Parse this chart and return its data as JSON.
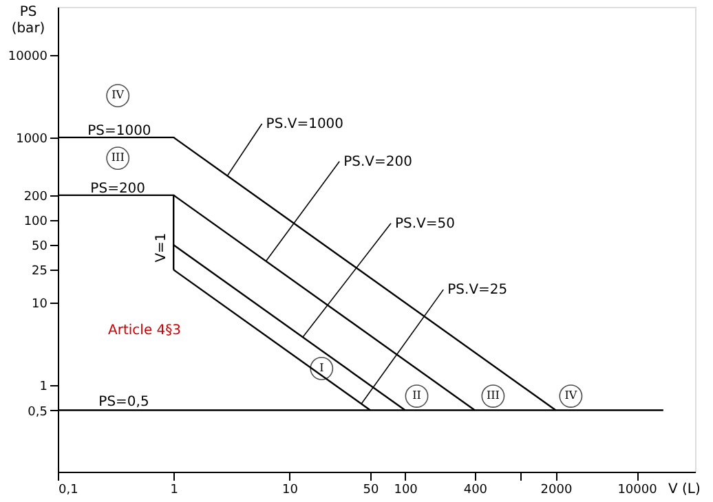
{
  "chart_data": {
    "type": "line",
    "xlabel": "V (L)",
    "ylabel": "PS (bar)",
    "log": "xy",
    "grid": false,
    "xlim": [
      0.1,
      32000
    ],
    "ylim": [
      0.09,
      38000
    ],
    "xticks": [
      {
        "value": 0.1,
        "label": "0,1"
      },
      1,
      10,
      50,
      100,
      400,
      {
        "value": 1000,
        "label": null
      },
      2000,
      10000
    ],
    "yticks": [
      {
        "value": 0.5,
        "label": "0,5"
      },
      1,
      10,
      25,
      50,
      100,
      200,
      1000,
      10000
    ],
    "series": [
      {
        "color": "#000000",
        "x": [
          0.1,
          1,
          2000
        ],
        "values": [
          1000,
          1000,
          0.5
        ]
      },
      {
        "color": "#000000",
        "x": [
          0.1,
          1,
          400
        ],
        "values": [
          200,
          200,
          0.5
        ]
      },
      {
        "color": "#000000",
        "x": [
          1,
          1
        ],
        "values": [
          200,
          25
        ]
      },
      {
        "color": "#000000",
        "x": [
          1,
          100
        ],
        "values": [
          50,
          0.5
        ]
      },
      {
        "color": "#000000",
        "x": [
          1,
          50
        ],
        "values": [
          25,
          0.5
        ]
      },
      {
        "color": "#000000",
        "x": [
          0.1,
          17000
        ],
        "values": [
          0.5,
          0.5
        ]
      }
    ],
    "annotations": [
      {
        "text": "PS.V=1000",
        "x": 2.9,
        "y": 340
      },
      {
        "text": "PS.V=200",
        "x": 6.3,
        "y": 32
      },
      {
        "text": "PS.V=50",
        "x": 13,
        "y": 3.8
      },
      {
        "text": "PS.V=25",
        "x": 42,
        "y": 0.6
      },
      {
        "text": "PS=1000",
        "x": 0.34,
        "y": 1200
      },
      {
        "text": "PS=200",
        "x": 0.33,
        "y": 240
      },
      "PS=0,5",
      "V=1",
      "Article 4§3",
      {
        "text": "IV",
        "x": 0.33,
        "y": 3200
      },
      {
        "text": "III",
        "x": 0.33,
        "y": 560
      },
      {
        "text": "I",
        "x": 19,
        "y": 1.6
      },
      {
        "text": "II",
        "x": 126,
        "y": 0.74
      },
      {
        "text": "III",
        "x": 575,
        "y": 0.74
      },
      {
        "text": "IV",
        "x": 2700,
        "y": 0.74
      }
    ]
  }
}
